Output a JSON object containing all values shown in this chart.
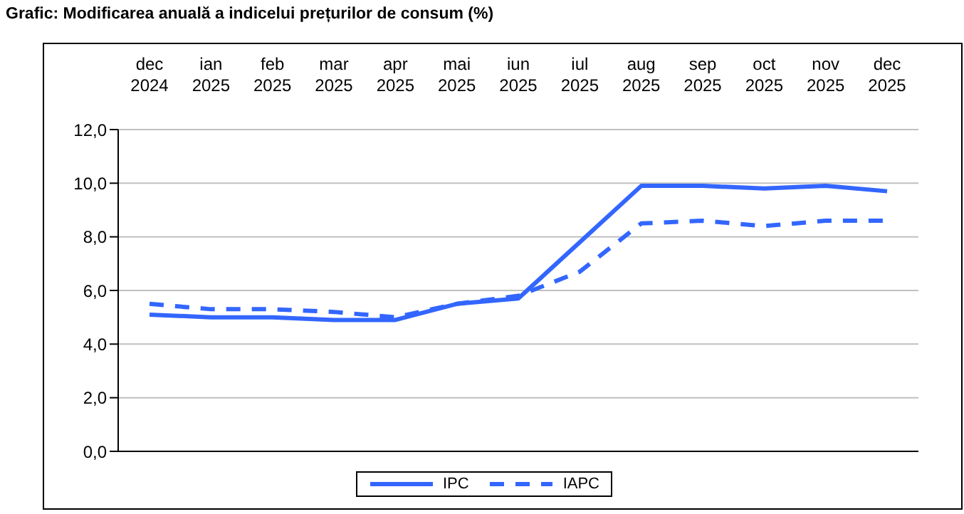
{
  "chart_data": {
    "type": "line",
    "title": "Grafic: Modificarea anuală a indicelui prețurilor de consum (%)",
    "categories": [
      "dec 2024",
      "ian 2025",
      "feb 2025",
      "mar 2025",
      "apr 2025",
      "mai 2025",
      "iun 2025",
      "iul 2025",
      "aug 2025",
      "sep 2025",
      "oct 2025",
      "nov 2025",
      "dec 2025"
    ],
    "series": [
      {
        "name": "IPC",
        "color": "#3366ff",
        "line_style": "solid",
        "values": [
          5.1,
          5.0,
          5.0,
          4.9,
          4.9,
          5.5,
          5.7,
          7.8,
          9.9,
          9.9,
          9.8,
          9.9,
          9.7
        ]
      },
      {
        "name": "IAPC",
        "color": "#3366ff",
        "line_style": "dashed",
        "values": [
          5.5,
          5.3,
          5.3,
          5.2,
          5.0,
          5.5,
          5.8,
          6.7,
          8.5,
          8.6,
          8.4,
          8.6,
          8.6
        ]
      }
    ],
    "ylim": [
      0,
      12
    ],
    "yticks": [
      {
        "value": 0,
        "label": "0,0"
      },
      {
        "value": 2,
        "label": "2,0"
      },
      {
        "value": 4,
        "label": "4,0"
      },
      {
        "value": 6,
        "label": "6,0"
      },
      {
        "value": 8,
        "label": "8,0"
      },
      {
        "value": 10,
        "label": "10,0"
      },
      {
        "value": 12,
        "label": "12,0"
      }
    ],
    "grid": "y",
    "legend": "bottom",
    "marker": "none"
  }
}
